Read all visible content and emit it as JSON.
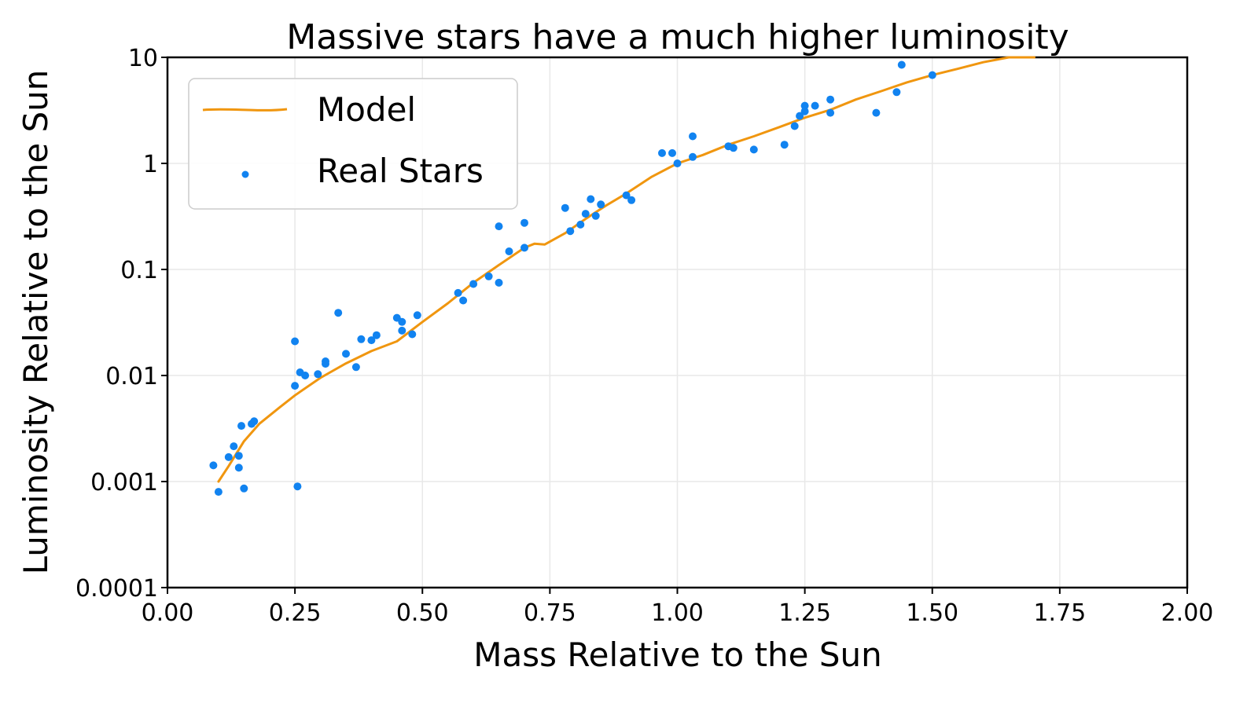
{
  "chart_data": {
    "type": "line+scatter",
    "title": "Massive stars have a much higher luminosity",
    "xlabel": "Mass Relative to the Sun",
    "ylabel": "Luminosity Relative to the Sun",
    "xlim": [
      0,
      2
    ],
    "ylim": [
      0.0001,
      10
    ],
    "yscale": "log",
    "grid": true,
    "legend_position": "top-left",
    "x_ticks": [
      0,
      0.25,
      0.5,
      0.75,
      1.0,
      1.25,
      1.5,
      1.75,
      2.0
    ],
    "x_tick_labels": [
      "0.00",
      "0.25",
      "0.50",
      "0.75",
      "1.00",
      "1.25",
      "1.50",
      "1.75",
      "2.00"
    ],
    "y_ticks": [
      0.0001,
      0.001,
      0.01,
      0.1,
      1,
      10
    ],
    "y_tick_labels": [
      "0.0001",
      "0.001",
      "0.01",
      "0.1",
      "1",
      "10"
    ],
    "colors": {
      "model": "#f0960f",
      "stars": "#1183f0",
      "grid": "#e8e8e8",
      "axis": "#000000"
    },
    "series": [
      {
        "name": "Model",
        "kind": "line",
        "points": [
          [
            0.1,
            0.001
          ],
          [
            0.12,
            0.0014
          ],
          [
            0.15,
            0.0024
          ],
          [
            0.18,
            0.0035
          ],
          [
            0.22,
            0.005
          ],
          [
            0.25,
            0.0065
          ],
          [
            0.3,
            0.0095
          ],
          [
            0.35,
            0.013
          ],
          [
            0.4,
            0.017
          ],
          [
            0.45,
            0.021
          ],
          [
            0.5,
            0.032
          ],
          [
            0.55,
            0.048
          ],
          [
            0.6,
            0.075
          ],
          [
            0.65,
            0.11
          ],
          [
            0.7,
            0.16
          ],
          [
            0.72,
            0.175
          ],
          [
            0.74,
            0.172
          ],
          [
            0.78,
            0.22
          ],
          [
            0.82,
            0.3
          ],
          [
            0.86,
            0.4
          ],
          [
            0.9,
            0.52
          ],
          [
            0.95,
            0.75
          ],
          [
            1.0,
            1.0
          ],
          [
            1.05,
            1.2
          ],
          [
            1.1,
            1.5
          ],
          [
            1.15,
            1.8
          ],
          [
            1.2,
            2.2
          ],
          [
            1.25,
            2.7
          ],
          [
            1.3,
            3.2
          ],
          [
            1.35,
            4.0
          ],
          [
            1.4,
            4.8
          ],
          [
            1.45,
            5.8
          ],
          [
            1.5,
            6.8
          ],
          [
            1.55,
            7.8
          ],
          [
            1.6,
            9.0
          ],
          [
            1.65,
            10.2
          ],
          [
            1.7,
            11.2
          ]
        ]
      },
      {
        "name": "Real Stars",
        "kind": "scatter",
        "points": [
          [
            0.09,
            0.00142
          ],
          [
            0.1,
            0.0008
          ],
          [
            0.12,
            0.0017
          ],
          [
            0.13,
            0.00215
          ],
          [
            0.14,
            0.00135
          ],
          [
            0.14,
            0.00175
          ],
          [
            0.145,
            0.00335
          ],
          [
            0.15,
            0.00086
          ],
          [
            0.165,
            0.0035
          ],
          [
            0.17,
            0.0037
          ],
          [
            0.25,
            0.008
          ],
          [
            0.25,
            0.021
          ],
          [
            0.255,
            0.0009
          ],
          [
            0.26,
            0.0107
          ],
          [
            0.27,
            0.01
          ],
          [
            0.295,
            0.0103
          ],
          [
            0.31,
            0.0129
          ],
          [
            0.31,
            0.0136
          ],
          [
            0.335,
            0.039
          ],
          [
            0.35,
            0.016
          ],
          [
            0.37,
            0.012
          ],
          [
            0.38,
            0.022
          ],
          [
            0.4,
            0.0215
          ],
          [
            0.41,
            0.024
          ],
          [
            0.45,
            0.035
          ],
          [
            0.46,
            0.032
          ],
          [
            0.46,
            0.0265
          ],
          [
            0.48,
            0.0245
          ],
          [
            0.49,
            0.037
          ],
          [
            0.57,
            0.06
          ],
          [
            0.58,
            0.051
          ],
          [
            0.6,
            0.073
          ],
          [
            0.63,
            0.086
          ],
          [
            0.65,
            0.075
          ],
          [
            0.65,
            0.255
          ],
          [
            0.67,
            0.148
          ],
          [
            0.7,
            0.16
          ],
          [
            0.7,
            0.275
          ],
          [
            0.78,
            0.38
          ],
          [
            0.79,
            0.23
          ],
          [
            0.81,
            0.265
          ],
          [
            0.82,
            0.335
          ],
          [
            0.83,
            0.46
          ],
          [
            0.84,
            0.32
          ],
          [
            0.85,
            0.41
          ],
          [
            0.9,
            0.5
          ],
          [
            0.91,
            0.45
          ],
          [
            0.97,
            1.25
          ],
          [
            0.99,
            1.25
          ],
          [
            1.0,
            1.0
          ],
          [
            1.03,
            1.15
          ],
          [
            1.03,
            1.8
          ],
          [
            1.1,
            1.45
          ],
          [
            1.11,
            1.4
          ],
          [
            1.15,
            1.35
          ],
          [
            1.21,
            1.5
          ],
          [
            1.23,
            2.25
          ],
          [
            1.24,
            2.8
          ],
          [
            1.25,
            3.1
          ],
          [
            1.25,
            3.5
          ],
          [
            1.27,
            3.5
          ],
          [
            1.3,
            3.0
          ],
          [
            1.3,
            4.0
          ],
          [
            1.39,
            3.0
          ],
          [
            1.43,
            4.7
          ],
          [
            1.44,
            8.5
          ],
          [
            1.5,
            6.8
          ]
        ]
      }
    ]
  }
}
